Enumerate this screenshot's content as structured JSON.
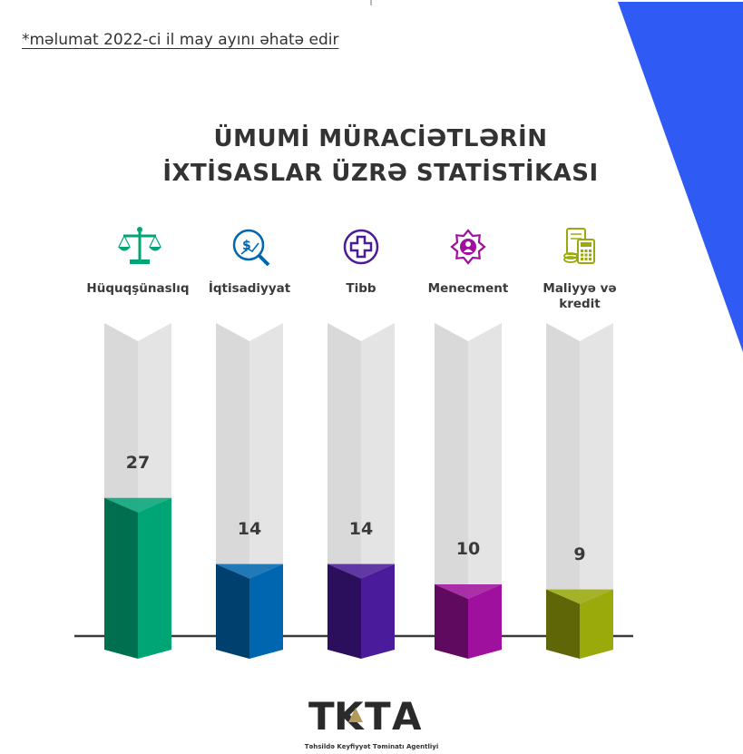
{
  "note": "*məlumat 2022-ci il may ayını əhatə edir",
  "title_line1": "ÜMUMİ MÜRACİƏTLƏRİN",
  "title_line2": "İXTİSASLAR ÜZRƏ STATİSTİKASI",
  "colors": {
    "accent_blue": "#2f5bf4",
    "bar_bg": "#e4e4e4",
    "baseline": "#3a3a3a"
  },
  "chart_data": {
    "type": "bar",
    "categories": [
      "Hüquqşünaslıq",
      "İqtisadiyyat",
      "Tibb",
      "Menecment",
      "Maliyyə və kredit"
    ],
    "values": [
      27,
      14,
      14,
      10,
      9
    ],
    "value_labels": [
      "27",
      "14",
      "14",
      "10",
      "9"
    ],
    "colors": [
      "#00a575",
      "#0066b0",
      "#4a1b9a",
      "#a0109f",
      "#9aaa0a"
    ],
    "dark_colors": [
      "#006f50",
      "#00406f",
      "#2b0f5c",
      "#5f0a5e",
      "#5e6608"
    ],
    "icons": [
      "scales-icon",
      "finance-magnifier-icon",
      "medical-cross-icon",
      "gear-manager-icon",
      "calculator-document-icon"
    ],
    "icon_colors": [
      "#00a575",
      "#0066b0",
      "#4a1b9a",
      "#a0109f",
      "#9aaa0a"
    ]
  },
  "logo": {
    "text": "TKTA",
    "subtitle": "Təhsildə Keyfiyyət Təminatı Agentliyi"
  }
}
